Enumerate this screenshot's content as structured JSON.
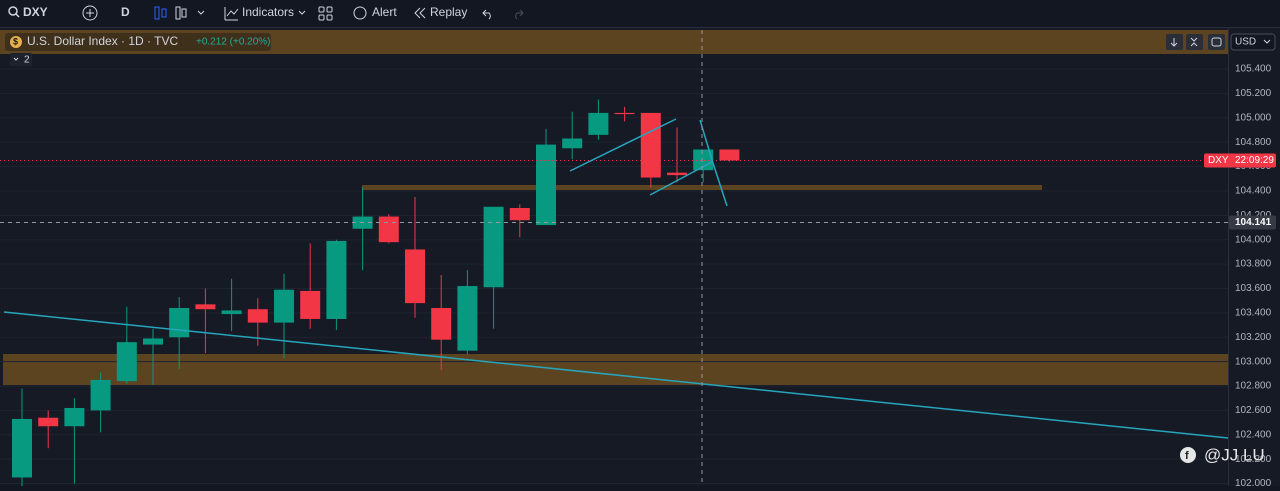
{
  "toolbar": {
    "symbol": "DXY",
    "interval": "D",
    "indicators": "Indicators",
    "alert": "Alert",
    "replay": "Replay"
  },
  "chart_data": {
    "type": "candlestick",
    "title": "U.S. Dollar Index · 1D · TVC",
    "change": "+0.212 (+0.20%)",
    "indicator_count": "2",
    "currency": "USD",
    "symbol_tag": "DXY",
    "countdown": "22:09:29",
    "crosshair_price": 104.141,
    "up_color": "#089981",
    "down_color": "#f23645",
    "open": [
      102.05,
      102.54,
      102.47,
      102.6,
      102.84,
      103.14,
      103.2,
      103.47,
      103.39,
      103.43,
      103.32,
      103.58,
      103.35,
      104.09,
      104.19,
      103.92,
      103.44,
      103.09,
      103.61,
      104.26,
      104.12,
      104.75,
      104.86,
      105.04,
      105.04,
      104.55,
      104.57,
      104.74
    ],
    "high": [
      102.78,
      102.6,
      102.7,
      102.91,
      103.45,
      103.27,
      103.53,
      103.6,
      103.68,
      103.52,
      103.72,
      103.97,
      104.0,
      104.43,
      104.21,
      104.35,
      103.71,
      103.75,
      104.27,
      104.29,
      104.91,
      105.05,
      105.15,
      105.09,
      105.04,
      104.92,
      104.74,
      104.74
    ],
    "low": [
      101.98,
      102.29,
      102.0,
      102.42,
      102.82,
      102.81,
      102.94,
      103.07,
      103.25,
      103.13,
      103.03,
      103.27,
      103.26,
      103.75,
      103.97,
      103.36,
      102.93,
      103.06,
      103.27,
      104.02,
      104.12,
      104.66,
      104.82,
      104.97,
      104.43,
      104.47,
      104.47,
      104.64
    ],
    "close": [
      102.53,
      102.47,
      102.62,
      102.85,
      103.16,
      103.19,
      103.44,
      103.43,
      103.42,
      103.32,
      103.59,
      103.35,
      103.99,
      104.19,
      103.98,
      103.48,
      103.18,
      103.62,
      104.27,
      104.16,
      104.78,
      104.83,
      105.04,
      105.03,
      104.51,
      104.53,
      104.74,
      104.65
    ],
    "ylim": [
      101.98,
      105.72
    ],
    "yticks": [
      {
        "value": 102.0,
        "label": "102.000"
      },
      {
        "value": 102.2,
        "label": "102.200"
      },
      {
        "value": 102.4,
        "label": "102.400"
      },
      {
        "value": 102.6,
        "label": "102.600"
      },
      {
        "value": 102.8,
        "label": "102.800"
      },
      {
        "value": 103.0,
        "label": "103.000"
      },
      {
        "value": 103.2,
        "label": "103.200"
      },
      {
        "value": 103.4,
        "label": "103.400"
      },
      {
        "value": 103.6,
        "label": "103.600"
      },
      {
        "value": 103.8,
        "label": "103.800"
      },
      {
        "value": 104.0,
        "label": "104.000"
      },
      {
        "value": 104.2,
        "label": "104.200"
      },
      {
        "value": 104.4,
        "label": "104.400"
      },
      {
        "value": 104.6,
        "label": "104.600"
      },
      {
        "value": 104.8,
        "label": "104.800"
      },
      {
        "value": 105.0,
        "label": "105.000"
      },
      {
        "value": 105.2,
        "label": "105.200"
      },
      {
        "value": 105.4,
        "label": "105.400"
      }
    ],
    "grid": true
  },
  "watermark": "@JJ LU"
}
